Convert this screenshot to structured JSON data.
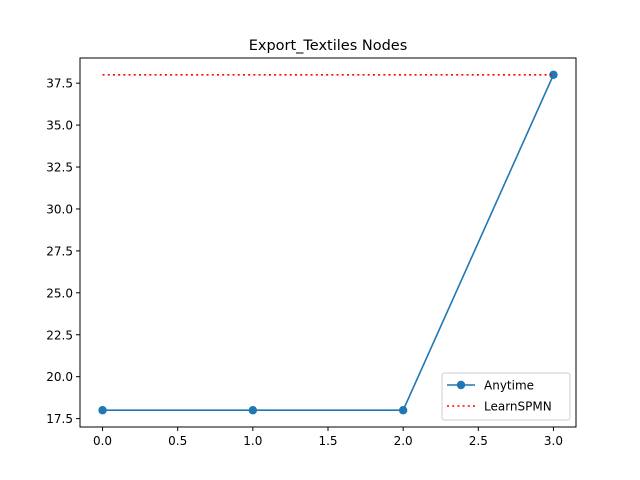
{
  "chart_data": {
    "type": "line",
    "title": "Export_Textiles Nodes",
    "xlabel": "",
    "ylabel": "",
    "xlim": [
      -0.15,
      3.15
    ],
    "ylim": [
      17.0,
      39.0
    ],
    "x_ticks": [
      0.0,
      0.5,
      1.0,
      1.5,
      2.0,
      2.5,
      3.0
    ],
    "x_tick_labels": [
      "0.0",
      "0.5",
      "1.0",
      "1.5",
      "2.0",
      "2.5",
      "3.0"
    ],
    "y_ticks": [
      17.5,
      20.0,
      22.5,
      25.0,
      27.5,
      30.0,
      32.5,
      35.0,
      37.5
    ],
    "y_tick_labels": [
      "17.5",
      "20.0",
      "22.5",
      "25.0",
      "27.5",
      "30.0",
      "32.5",
      "35.0",
      "37.5"
    ],
    "grid": false,
    "legend_position": "lower right",
    "series": [
      {
        "name": "Anytime",
        "x": [
          0,
          1,
          2,
          3
        ],
        "values": [
          18,
          18,
          18,
          38
        ],
        "color": "#1f77b4",
        "style": "solid",
        "marker": "circle"
      },
      {
        "name": "LearnSPMN",
        "x": [
          0,
          3
        ],
        "values": [
          38,
          38
        ],
        "color": "#ff0000",
        "style": "dotted",
        "marker": "none"
      }
    ]
  }
}
